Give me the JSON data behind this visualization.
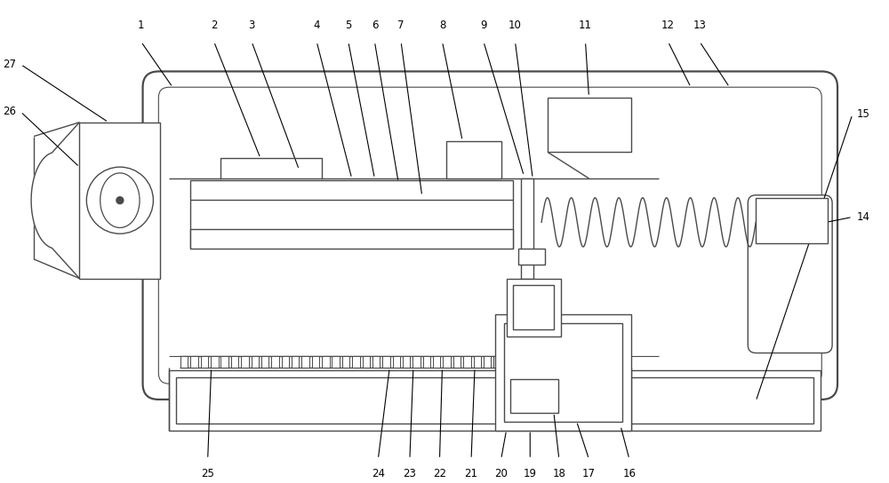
{
  "bg_color": "#ffffff",
  "lc": "#4a4a4a",
  "lw": 1.0,
  "fig_width": 10.0,
  "fig_height": 5.44
}
